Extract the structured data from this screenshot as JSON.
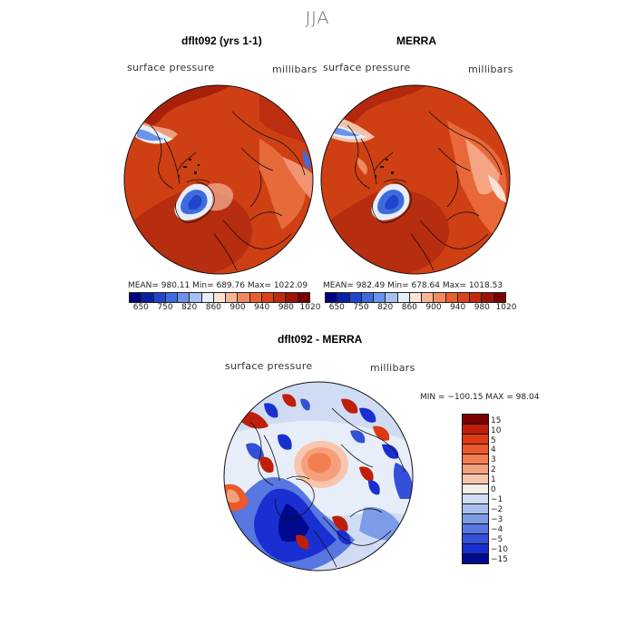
{
  "season": "JJA",
  "panels": [
    {
      "title": "dflt092 (yrs 1-1)",
      "variable": "surface pressure",
      "units": "millibars",
      "stats": "MEAN= 980.11   Min= 689.76   Max= 1022.09"
    },
    {
      "title": "MERRA",
      "variable": "surface pressure",
      "units": "millibars",
      "stats": "MEAN= 982.49   Min= 678.64   Max= 1018.53"
    }
  ],
  "abs_colorbar": {
    "colors": [
      "#00007f",
      "#0a1fa8",
      "#1f45cc",
      "#3f6bdd",
      "#6b93ea",
      "#a6c0f3",
      "#e6eefc",
      "#fbe2d4",
      "#f6b595",
      "#f08a5e",
      "#e6602f",
      "#d9421a",
      "#c22a0c",
      "#9b1408",
      "#7a0000"
    ],
    "tick_labels": [
      "650",
      "750",
      "820",
      "860",
      "900",
      "940",
      "980",
      "1020"
    ]
  },
  "diff": {
    "title": "dflt092 - MERRA",
    "variable": "surface pressure",
    "units": "millibars",
    "minmax": "MIN = −100.15 MAX =  98.04",
    "colorbar": {
      "colors": [
        "#7a0000",
        "#bf1f0a",
        "#dd3a12",
        "#ec5a2c",
        "#f27e52",
        "#f5a07c",
        "#f8c5ad",
        "#f4eee9",
        "#cfdcf3",
        "#a8c0ef",
        "#7d9ce8",
        "#5877e0",
        "#3550d8",
        "#1a2fd2",
        "#000a8f"
      ],
      "labels": [
        "15",
        "10",
        "5",
        "4",
        "3",
        "2",
        "1",
        "0",
        "−1",
        "−2",
        "−3",
        "−4",
        "−5",
        "−10",
        "−15"
      ]
    }
  }
}
